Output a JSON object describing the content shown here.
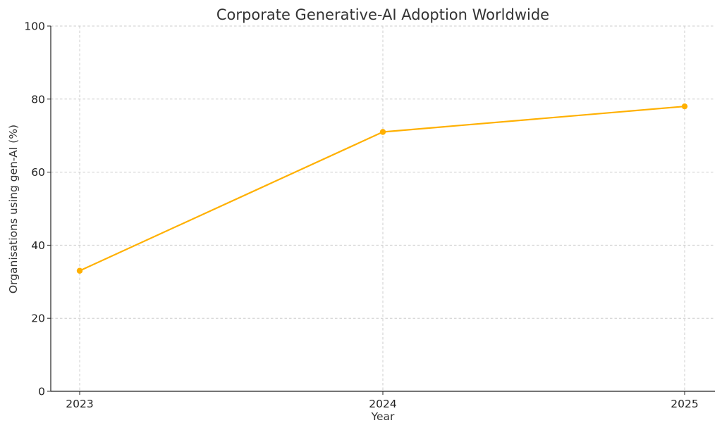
{
  "chart_data": {
    "type": "line",
    "title": "Corporate Generative-AI Adoption Worldwide",
    "xlabel": "Year",
    "ylabel": "Organisations using gen-AI (%)",
    "x": [
      "2023",
      "2024",
      "2025"
    ],
    "series": [
      {
        "values": [
          33,
          71,
          78
        ],
        "color": "#FFB000"
      }
    ],
    "ylim": [
      0,
      100
    ],
    "yticks": [
      0,
      20,
      40,
      60,
      80,
      100
    ],
    "grid": true,
    "marker": "circle"
  }
}
